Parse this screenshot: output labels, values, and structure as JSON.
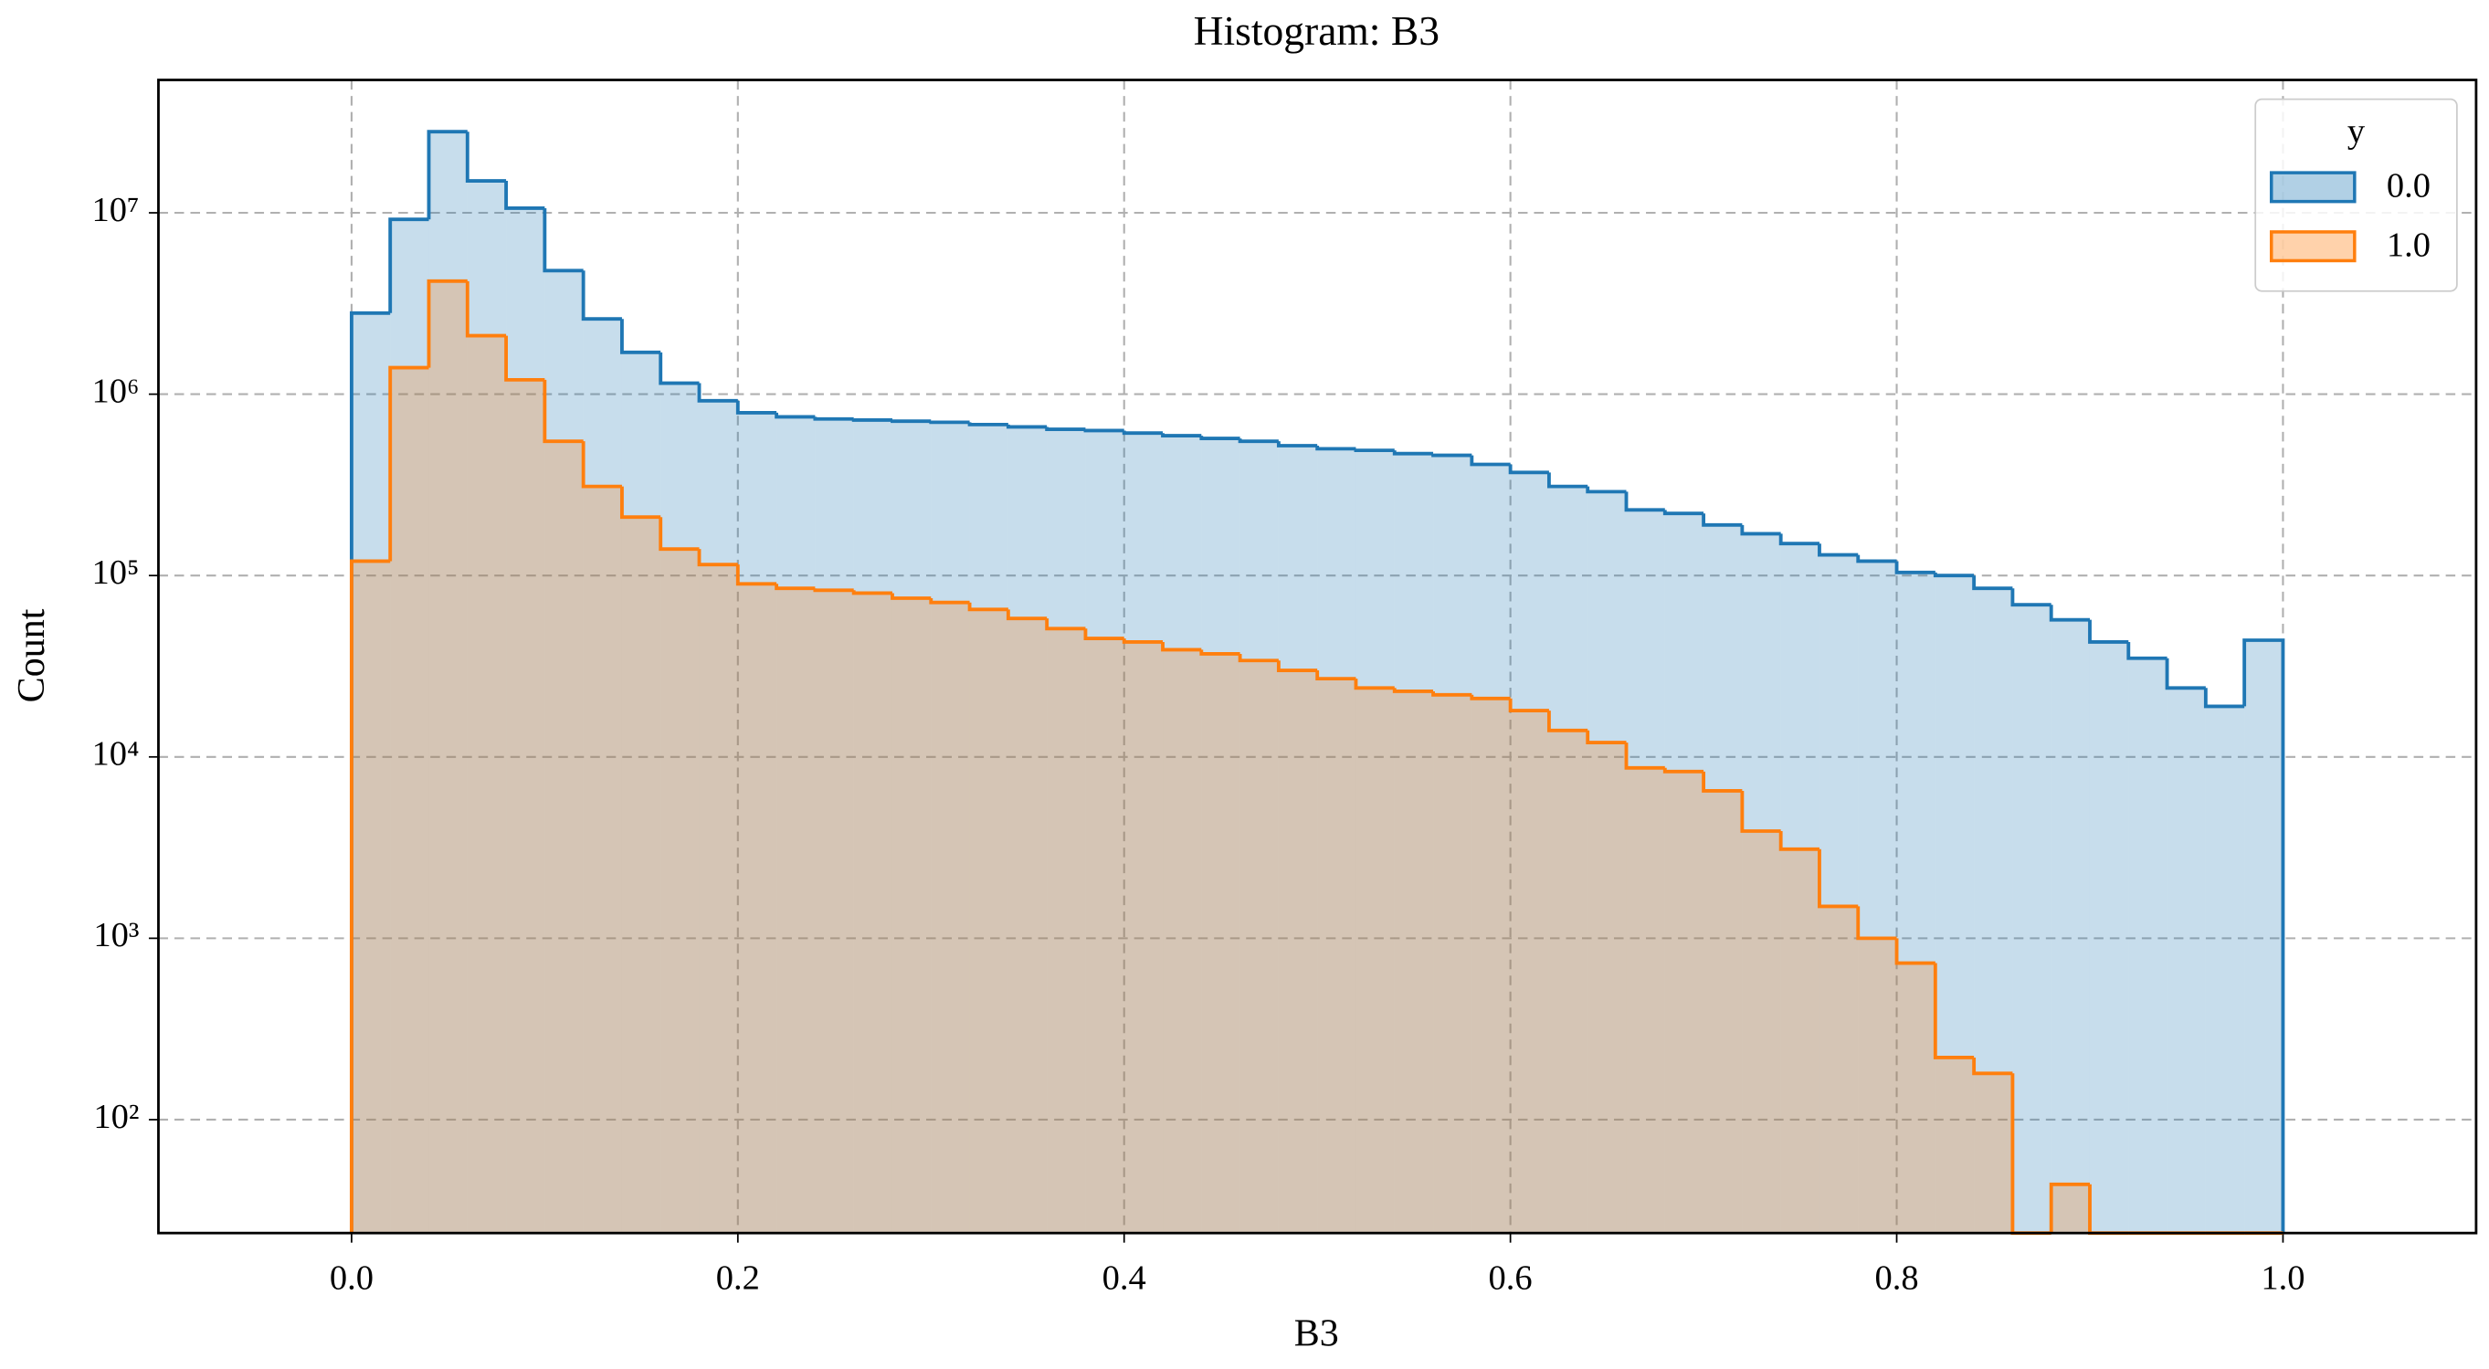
{
  "chart_data": {
    "type": "histogram",
    "title": "Histogram: B3",
    "xlabel": "B3",
    "ylabel": "Count",
    "bins": [
      0,
      0.02,
      0.04,
      0.06,
      0.08,
      0.1,
      0.12,
      0.14,
      0.16,
      0.18,
      0.2,
      0.22,
      0.24,
      0.26,
      0.28,
      0.3,
      0.32,
      0.34,
      0.36,
      0.38,
      0.4,
      0.42,
      0.44,
      0.46,
      0.48,
      0.5,
      0.52,
      0.54,
      0.56,
      0.58,
      0.6,
      0.62,
      0.64,
      0.66,
      0.68,
      0.7,
      0.72,
      0.74,
      0.76,
      0.78,
      0.8,
      0.82,
      0.84,
      0.86,
      0.88,
      0.9,
      0.92,
      0.94,
      0.96,
      0.98,
      1
    ],
    "series": [
      {
        "name": "0.0",
        "color": "#1f77b4",
        "values": [
          2800000,
          9200000,
          28000000,
          15000000,
          10600000,
          4800000,
          2600000,
          1700000,
          1150000,
          920000,
          790000,
          750000,
          730000,
          720000,
          710000,
          700000,
          680000,
          660000,
          640000,
          630000,
          610000,
          590000,
          570000,
          550000,
          520000,
          500000,
          490000,
          470000,
          460000,
          410000,
          370000,
          310000,
          290000,
          230000,
          220000,
          190000,
          170000,
          150000,
          130000,
          120000,
          104000,
          100000,
          85000,
          69000,
          57000,
          43000,
          35000,
          24000,
          19000,
          44000
        ]
      },
      {
        "name": "1.0",
        "color": "#ff7f0e",
        "values": [
          120000,
          1400000,
          4200000,
          2100000,
          1200000,
          550000,
          310000,
          210000,
          140000,
          115000,
          90000,
          85000,
          83000,
          80000,
          75000,
          71000,
          65000,
          58000,
          51000,
          45000,
          43000,
          39000,
          37000,
          34000,
          30000,
          27000,
          24000,
          23000,
          22000,
          21000,
          18000,
          14000,
          12000,
          8700,
          8300,
          6500,
          3900,
          3100,
          1500,
          1000,
          730,
          220,
          180,
          0,
          44,
          0,
          0,
          0,
          0,
          0
        ]
      }
    ],
    "xlim": [
      -0.1,
      1.1
    ],
    "xticks": [
      {
        "value": 0,
        "label": "0.0"
      },
      0.2,
      0.4,
      0.6,
      0.8,
      {
        "value": 1,
        "label": "1.0"
      }
    ],
    "ylim": [
      23.7,
      54000000
    ],
    "log_y": true,
    "yticks": [
      {
        "value": 100,
        "label": "10²"
      },
      {
        "value": 1000,
        "label": "10³"
      },
      {
        "value": 10000,
        "label": "10⁴"
      },
      {
        "value": 100000,
        "label": "10⁵"
      },
      {
        "value": 1000000,
        "label": "10⁶"
      },
      {
        "value": 10000000,
        "label": "10⁷"
      }
    ],
    "grid": true,
    "legend_title": "y",
    "legend_loc": "upper right",
    "fill_opacity": 0.25
  }
}
